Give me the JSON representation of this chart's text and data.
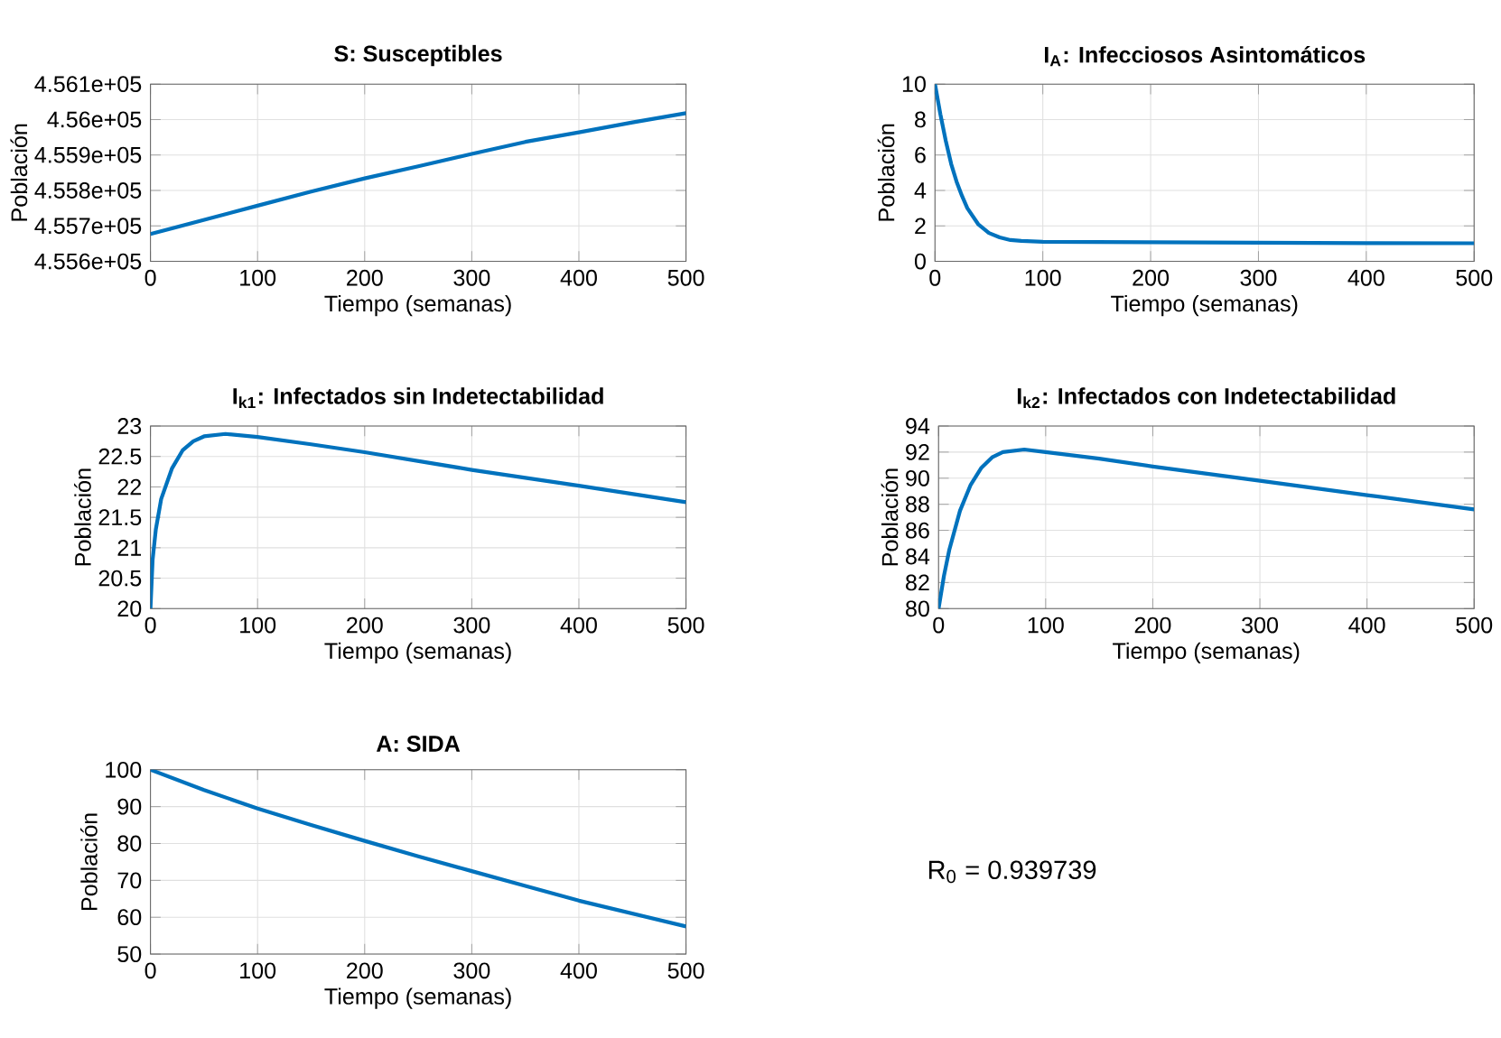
{
  "chart_data": [
    {
      "type": "line",
      "title": "S: Susceptibles",
      "xlabel": "Tiempo (semanas)",
      "ylabel": "Población",
      "grid": true,
      "x": [
        0,
        50,
        100,
        150,
        200,
        250,
        300,
        350,
        400,
        450,
        500
      ],
      "series": [
        {
          "color": "#0072bd",
          "values": [
            455677,
            455717,
            455757,
            455797,
            455834,
            455868,
            455903,
            455937,
            455964,
            455992,
            456018
          ]
        }
      ],
      "xlim": [
        0,
        500
      ],
      "xticks": [
        0,
        100,
        200,
        300,
        400,
        500
      ],
      "ylim": [
        455600,
        456100
      ],
      "yticks": [
        {
          "value": 455600,
          "label": "4.556e+05"
        },
        {
          "value": 455700,
          "label": "4.557e+05"
        },
        {
          "value": 455800,
          "label": "4.558e+05"
        },
        {
          "value": 455900,
          "label": "4.559e+05"
        },
        {
          "value": 456000,
          "label": "4.56e+05"
        },
        {
          "value": 456100,
          "label": "4.561e+05"
        }
      ]
    },
    {
      "type": "line",
      "title": "I$_{A}$: Infecciosos Asintomáticos",
      "xlabel": "Tiempo (semanas)",
      "ylabel": "Población",
      "grid": true,
      "x": [
        0,
        5,
        10,
        15,
        20,
        25,
        30,
        40,
        50,
        60,
        70,
        80,
        100,
        200,
        300,
        400,
        500
      ],
      "series": [
        {
          "color": "#0072bd",
          "values": [
            10,
            8.3,
            6.8,
            5.5,
            4.5,
            3.7,
            3.0,
            2.1,
            1.6,
            1.35,
            1.2,
            1.15,
            1.1,
            1.08,
            1.05,
            1.03,
            1.02
          ]
        }
      ],
      "xlim": [
        0,
        500
      ],
      "xticks": [
        0,
        100,
        200,
        300,
        400,
        500
      ],
      "ylim": [
        0,
        10
      ],
      "yticks": [
        0,
        2,
        4,
        6,
        8,
        10
      ]
    },
    {
      "type": "line",
      "title": "I$_{k1}$: Infectados sin Indetectabilidad",
      "xlabel": "Tiempo (semanas)",
      "ylabel": "Población",
      "grid": true,
      "x": [
        0,
        2,
        5,
        10,
        20,
        30,
        40,
        50,
        70,
        100,
        150,
        200,
        300,
        400,
        500
      ],
      "series": [
        {
          "color": "#0072bd",
          "values": [
            20,
            20.8,
            21.3,
            21.8,
            22.3,
            22.6,
            22.75,
            22.83,
            22.87,
            22.82,
            22.7,
            22.57,
            22.28,
            22.02,
            21.75
          ]
        }
      ],
      "xlim": [
        0,
        500
      ],
      "xticks": [
        0,
        100,
        200,
        300,
        400,
        500
      ],
      "ylim": [
        20,
        23
      ],
      "yticks": [
        20,
        20.5,
        21,
        21.5,
        22,
        22.5,
        23
      ]
    },
    {
      "type": "line",
      "title": "I$_{k2}$: Infectados con Indetectabilidad",
      "xlabel": "Tiempo (semanas)",
      "ylabel": "Población",
      "grid": true,
      "x": [
        0,
        5,
        10,
        20,
        30,
        40,
        50,
        60,
        80,
        100,
        150,
        200,
        300,
        400,
        500
      ],
      "series": [
        {
          "color": "#0072bd",
          "values": [
            80,
            82.5,
            84.5,
            87.5,
            89.5,
            90.8,
            91.6,
            92.0,
            92.2,
            92.0,
            91.5,
            90.9,
            89.8,
            88.7,
            87.6
          ]
        }
      ],
      "xlim": [
        0,
        500
      ],
      "xticks": [
        0,
        100,
        200,
        300,
        400,
        500
      ],
      "ylim": [
        80,
        94
      ],
      "yticks": [
        80,
        82,
        84,
        86,
        88,
        90,
        92,
        94
      ]
    },
    {
      "type": "line",
      "title": "A: SIDA",
      "xlabel": "Tiempo (semanas)",
      "ylabel": "Población",
      "grid": true,
      "x": [
        0,
        50,
        100,
        150,
        200,
        250,
        300,
        350,
        400,
        450,
        500
      ],
      "series": [
        {
          "color": "#0072bd",
          "values": [
            100,
            94.5,
            89.5,
            85,
            80.7,
            76.5,
            72.5,
            68.5,
            64.5,
            61,
            57.5
          ]
        }
      ],
      "xlim": [
        0,
        500
      ],
      "xticks": [
        0,
        100,
        200,
        300,
        400,
        500
      ],
      "ylim": [
        50,
        100
      ],
      "yticks": [
        50,
        60,
        70,
        80,
        90,
        100
      ]
    },
    {
      "type": "other",
      "annotations": [
        "R$_{0}$ = 0.939739"
      ]
    }
  ]
}
